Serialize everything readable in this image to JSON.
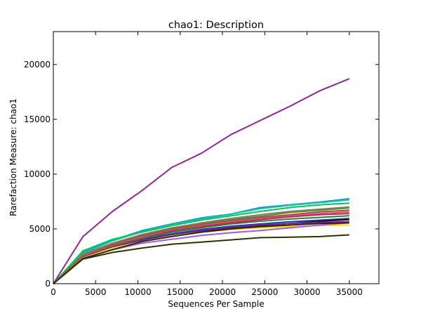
{
  "chart_data": {
    "type": "line",
    "title": "chao1: Description",
    "xlabel": "Sequences Per Sample",
    "ylabel": "Rarefaction Measure: chao1",
    "xlim": [
      0,
      38500
    ],
    "ylim": [
      0,
      23000
    ],
    "xticks": [
      0,
      5000,
      10000,
      15000,
      20000,
      25000,
      30000,
      35000
    ],
    "yticks": [
      0,
      5000,
      10000,
      15000,
      20000
    ],
    "grid": false,
    "legend": "none",
    "x": [
      0,
      3500,
      7000,
      10500,
      14000,
      17500,
      21000,
      24500,
      28000,
      31500,
      35000
    ],
    "series": [
      {
        "color": "#8e2791",
        "values": [
          0,
          4300,
          6600,
          8500,
          10600,
          11900,
          13600,
          14900,
          16200,
          17600,
          18700
        ]
      },
      {
        "color": "#1f8fd0",
        "values": [
          0,
          2900,
          3950,
          4850,
          5450,
          6000,
          6350,
          6950,
          7200,
          7450,
          7750
        ]
      },
      {
        "color": "#17bfb3",
        "values": [
          0,
          2800,
          3900,
          4750,
          5400,
          5900,
          6350,
          6850,
          7150,
          7400,
          7650
        ]
      },
      {
        "color": "#00c853",
        "values": [
          0,
          3000,
          4050,
          4700,
          5300,
          5800,
          6200,
          6600,
          6950,
          7200,
          7350
        ]
      },
      {
        "color": "#7d7d7d",
        "values": [
          0,
          2700,
          3700,
          4500,
          5100,
          5550,
          5950,
          6300,
          6600,
          6800,
          7000
        ]
      },
      {
        "color": "#5b8f2e",
        "values": [
          0,
          2600,
          3600,
          4400,
          5000,
          5450,
          5850,
          6150,
          6500,
          6700,
          6900
        ]
      },
      {
        "color": "#a0522d",
        "values": [
          0,
          2500,
          3550,
          4350,
          4950,
          5400,
          5750,
          6050,
          6300,
          6550,
          6700
        ]
      },
      {
        "color": "#c06080",
        "values": [
          0,
          2500,
          3450,
          4250,
          4850,
          5300,
          5650,
          5950,
          6200,
          6400,
          6550
        ]
      },
      {
        "color": "#d81b60",
        "values": [
          0,
          2450,
          3400,
          4150,
          4800,
          5200,
          5550,
          5850,
          6100,
          6300,
          6400
        ]
      },
      {
        "color": "#2e7d32",
        "values": [
          0,
          2400,
          3350,
          4100,
          4700,
          5100,
          5450,
          5700,
          5900,
          6050,
          6200
        ]
      },
      {
        "color": "#0d47a1",
        "values": [
          0,
          2350,
          3300,
          4000,
          4550,
          4950,
          5250,
          5450,
          5650,
          5800,
          5950
        ]
      },
      {
        "color": "#111111",
        "values": [
          0,
          2350,
          3250,
          3950,
          4450,
          4800,
          5100,
          5300,
          5500,
          5700,
          5850
        ]
      },
      {
        "color": "#7b1fa2",
        "values": [
          0,
          2400,
          3300,
          3950,
          4450,
          4850,
          5150,
          5350,
          5500,
          5600,
          5650
        ]
      },
      {
        "color": "#ffe000",
        "values": [
          0,
          2350,
          3250,
          3850,
          4350,
          4700,
          4950,
          5100,
          5200,
          5300,
          5350
        ]
      },
      {
        "color": "#9b59f6",
        "values": [
          0,
          2300,
          3100,
          3700,
          4050,
          4400,
          4650,
          4850,
          5100,
          5350,
          5550
        ]
      },
      {
        "color": "#3b2300",
        "values": [
          0,
          2300,
          3100,
          3850,
          4300,
          4700,
          5000,
          5200,
          5350,
          5500,
          5550
        ]
      },
      {
        "color": "#2b3500",
        "values": [
          0,
          2250,
          2850,
          3250,
          3600,
          3800,
          4000,
          4200,
          4250,
          4300,
          4450
        ]
      }
    ]
  }
}
